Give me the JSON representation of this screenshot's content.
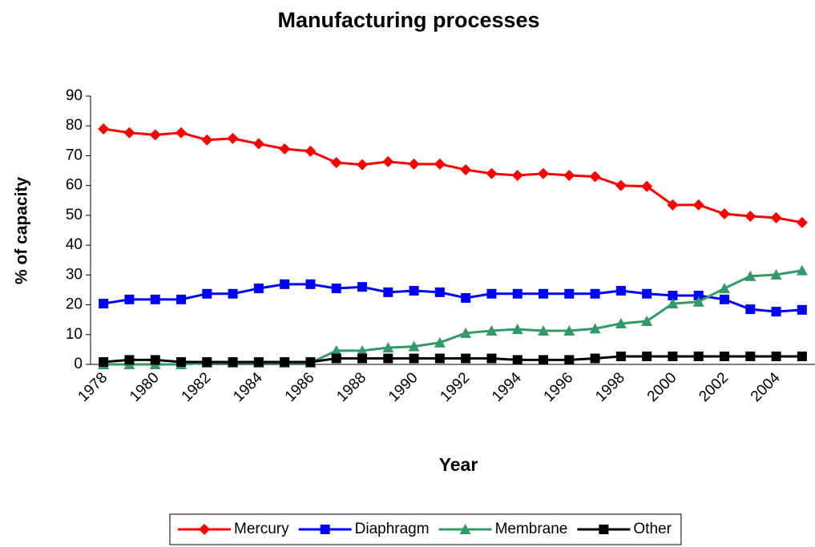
{
  "chart_data": {
    "type": "line",
    "title": "Manufacturing processes",
    "xlabel": "Year",
    "ylabel": "% of capacity",
    "categories": [
      "1978",
      null,
      "1980",
      null,
      "1982",
      null,
      "1984",
      null,
      "1986",
      null,
      "1988",
      null,
      "1990",
      null,
      "1992",
      null,
      "1994",
      null,
      "1996",
      null,
      "1998",
      null,
      "2000",
      null,
      "2002",
      null,
      "2004",
      null
    ],
    "series": [
      {
        "name": "Mercury",
        "color": "#ff0000",
        "marker": "diamond",
        "values": [
          79,
          77.7,
          77,
          77.7,
          75.3,
          75.8,
          74,
          72.3,
          71.5,
          67.7,
          67,
          68,
          67.2,
          67.2,
          65.3,
          64,
          63.4,
          64,
          63.4,
          63,
          60,
          59.7,
          53.5,
          53.5,
          50.5,
          49.7,
          49.2,
          47.6
        ]
      },
      {
        "name": "Diaphragm",
        "color": "#0000ff",
        "marker": "square",
        "values": [
          20.4,
          21.8,
          21.8,
          21.8,
          23.7,
          23.7,
          25.5,
          26.9,
          26.9,
          25.5,
          26,
          24.2,
          24.7,
          24.2,
          22.3,
          23.7,
          23.7,
          23.7,
          23.7,
          23.7,
          24.7,
          23.7,
          23.1,
          23.1,
          21.8,
          18.5,
          17.7,
          18.3
        ]
      },
      {
        "name": "Membrane",
        "color": "#339966",
        "marker": "triangle",
        "values": [
          0,
          0,
          0,
          0,
          0.5,
          0.5,
          0.5,
          0.5,
          0.5,
          4.6,
          4.6,
          5.6,
          6,
          7.3,
          10.5,
          11.3,
          11.8,
          11.3,
          11.3,
          12,
          13.7,
          14.5,
          20.4,
          21,
          25.5,
          29.6,
          30.1,
          31.5
        ]
      },
      {
        "name": "Other",
        "color": "#000000",
        "marker": "square",
        "values": [
          0.8,
          1.5,
          1.5,
          0.8,
          0.8,
          0.8,
          0.8,
          0.8,
          0.8,
          2,
          2,
          2,
          2,
          2,
          2,
          2,
          1.5,
          1.5,
          1.5,
          2,
          2.7,
          2.7,
          2.7,
          2.7,
          2.7,
          2.7,
          2.7,
          2.7
        ]
      }
    ],
    "ylim": [
      0,
      90
    ],
    "yticks": [
      0,
      10,
      20,
      30,
      40,
      50,
      60,
      70,
      80,
      90
    ],
    "grid": false,
    "legend": "bottom"
  }
}
